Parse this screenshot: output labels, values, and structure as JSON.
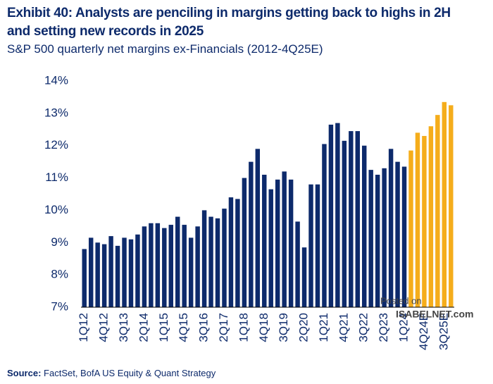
{
  "chart_data": {
    "type": "bar",
    "title": "Exhibit 40: Analysts are penciling in margins getting back to highs in 2H and setting new records in 2025",
    "subtitle": "S&P 500 quarterly net margins ex-Financials (2012-4Q25E)",
    "source_label": "Source:",
    "source": "FactSet, BofA US Equity & Quant Strategy",
    "watermark": [
      "Posted on",
      "ISABELNET.com"
    ],
    "categories": [
      "1Q12",
      null,
      null,
      "4Q12",
      null,
      null,
      "3Q13",
      null,
      null,
      "2Q14",
      null,
      null,
      "1Q15",
      null,
      null,
      "4Q15",
      null,
      null,
      "3Q16",
      null,
      null,
      "2Q17",
      null,
      null,
      "1Q18",
      null,
      null,
      "4Q18",
      null,
      null,
      "3Q19",
      null,
      null,
      "2Q20",
      null,
      null,
      "1Q21",
      null,
      null,
      "4Q21",
      null,
      null,
      "3Q22",
      null,
      null,
      "2Q23",
      null,
      null,
      "1Q24",
      null,
      null,
      "4Q24E",
      null,
      null,
      "3Q25E",
      null
    ],
    "values": [
      8.8,
      9.15,
      9.0,
      8.95,
      9.2,
      8.9,
      9.15,
      9.1,
      9.25,
      9.5,
      9.6,
      9.6,
      9.45,
      9.55,
      9.8,
      9.55,
      9.15,
      9.5,
      10.0,
      9.8,
      9.75,
      10.05,
      10.4,
      10.35,
      11.0,
      11.5,
      11.9,
      11.1,
      10.65,
      10.95,
      11.2,
      10.95,
      9.65,
      8.85,
      10.8,
      10.8,
      12.05,
      12.65,
      12.7,
      12.15,
      12.45,
      12.45,
      12.0,
      11.25,
      11.1,
      11.3,
      11.9,
      11.5,
      11.35,
      11.85,
      12.4,
      12.3,
      12.6,
      12.95,
      13.35,
      13.25
    ],
    "colors": [
      "#0d2a6b",
      "#0d2a6b",
      "#0d2a6b",
      "#0d2a6b",
      "#0d2a6b",
      "#0d2a6b",
      "#0d2a6b",
      "#0d2a6b",
      "#0d2a6b",
      "#0d2a6b",
      "#0d2a6b",
      "#0d2a6b",
      "#0d2a6b",
      "#0d2a6b",
      "#0d2a6b",
      "#0d2a6b",
      "#0d2a6b",
      "#0d2a6b",
      "#0d2a6b",
      "#0d2a6b",
      "#0d2a6b",
      "#0d2a6b",
      "#0d2a6b",
      "#0d2a6b",
      "#0d2a6b",
      "#0d2a6b",
      "#0d2a6b",
      "#0d2a6b",
      "#0d2a6b",
      "#0d2a6b",
      "#0d2a6b",
      "#0d2a6b",
      "#0d2a6b",
      "#0d2a6b",
      "#0d2a6b",
      "#0d2a6b",
      "#0d2a6b",
      "#0d2a6b",
      "#0d2a6b",
      "#0d2a6b",
      "#0d2a6b",
      "#0d2a6b",
      "#0d2a6b",
      "#0d2a6b",
      "#0d2a6b",
      "#0d2a6b",
      "#0d2a6b",
      "#0d2a6b",
      "#0d2a6b",
      "#f5ad1b",
      "#f5ad1b",
      "#f5ad1b",
      "#f5ad1b",
      "#f5ad1b",
      "#f5ad1b",
      "#f5ad1b"
    ],
    "ylim": [
      7,
      14
    ],
    "yticks": [
      {
        "value": 7,
        "label": "7%"
      },
      {
        "value": 8,
        "label": "8%"
      },
      {
        "value": 9,
        "label": "9%"
      },
      {
        "value": 10,
        "label": "10%"
      },
      {
        "value": 11,
        "label": "11%"
      },
      {
        "value": 12,
        "label": "12%"
      },
      {
        "value": 13,
        "label": "13%"
      },
      {
        "value": 14,
        "label": "14%"
      }
    ],
    "grid": false
  }
}
